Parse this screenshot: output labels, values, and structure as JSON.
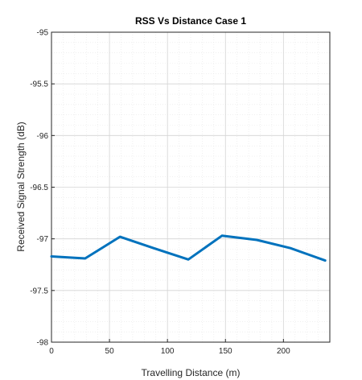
{
  "chart_data": {
    "type": "line",
    "title": "RSS Vs Distance Case 1",
    "xlabel": "Travelling Distance (m)",
    "ylabel": "Received Signal Strength (dB)",
    "xlim": [
      0,
      240
    ],
    "ylim": [
      -98,
      -95
    ],
    "x_ticks": [
      0,
      50,
      100,
      150,
      200
    ],
    "x_tick_labels": [
      "0",
      "50",
      "100",
      "150",
      "200"
    ],
    "y_ticks": [
      -95,
      -95.5,
      -96,
      -96.5,
      -97,
      -97.5,
      -98
    ],
    "y_tick_labels": [
      "-95",
      "-95.5",
      "-96",
      "-96.5",
      "-97",
      "-97.5",
      "-98"
    ],
    "grid": true,
    "minor_grid": true,
    "series": [
      {
        "color": "#0072BD",
        "x": [
          0,
          29,
          59,
          88,
          118,
          147,
          177,
          206,
          236
        ],
        "y": [
          -97.17,
          -97.19,
          -96.98,
          -97.09,
          -97.2,
          -96.97,
          -97.01,
          -97.09,
          -97.21
        ]
      }
    ]
  }
}
